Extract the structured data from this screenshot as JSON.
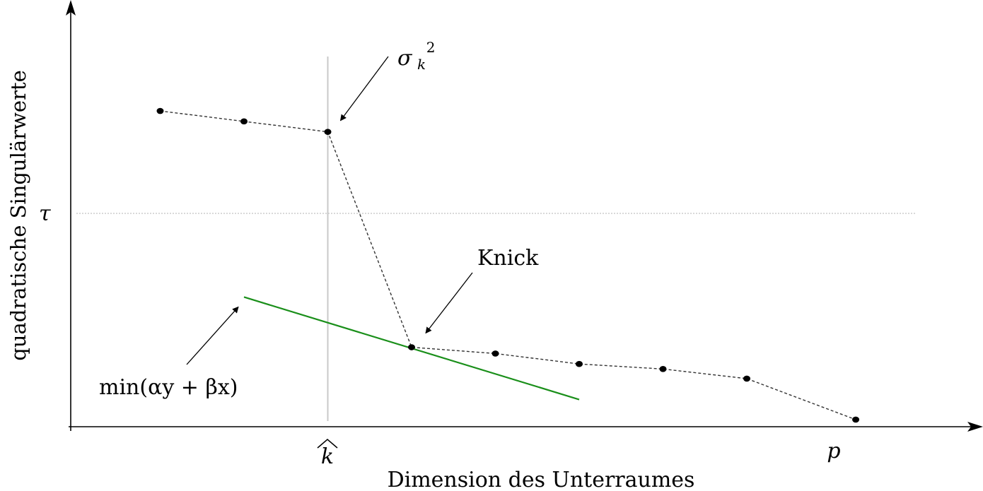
{
  "chart_data": {
    "type": "line",
    "title": "",
    "xlabel": "Dimension des Unterraumes",
    "ylabel": "quadratische Singulärwerte",
    "xlim": [
      0,
      11
    ],
    "ylim": [
      0,
      10
    ],
    "grid": false,
    "legend": "none",
    "x_tick_labels": [
      {
        "x": 3,
        "label": "k",
        "accent": "^"
      },
      {
        "x": 9.3,
        "label": "p"
      }
    ],
    "y_tick_labels": [
      {
        "y": 5.1,
        "label": "τ"
      }
    ],
    "series": [
      {
        "color": "#333333",
        "style": "dashed",
        "x": [
          1,
          2,
          3,
          4,
          5,
          6,
          7,
          8,
          9.3
        ],
        "y": [
          7.55,
          7.3,
          7.05,
          1.9,
          1.75,
          1.5,
          1.38,
          1.15,
          0.17
        ]
      }
    ],
    "reference_lines": {
      "vertical": {
        "x": 3,
        "color": "#c8c8c8"
      },
      "horizontal": {
        "y": 5.1,
        "color": "#c8c8c8"
      }
    },
    "tangent_line": {
      "color": "#1a8f1a",
      "from": [
        2,
        3.1
      ],
      "to": [
        6,
        0.65
      ]
    },
    "annotations": [
      {
        "name": "sigma-k-squared",
        "text_main": "σ",
        "text_sub": "k",
        "text_sup": "2",
        "points_to": [
          3,
          7.05
        ]
      },
      {
        "name": "knick",
        "text": "Knick",
        "points_to": [
          4,
          1.9
        ]
      },
      {
        "name": "min-expression",
        "text": "min(αy + βx)",
        "points_to": [
          2,
          3.1
        ]
      }
    ]
  }
}
